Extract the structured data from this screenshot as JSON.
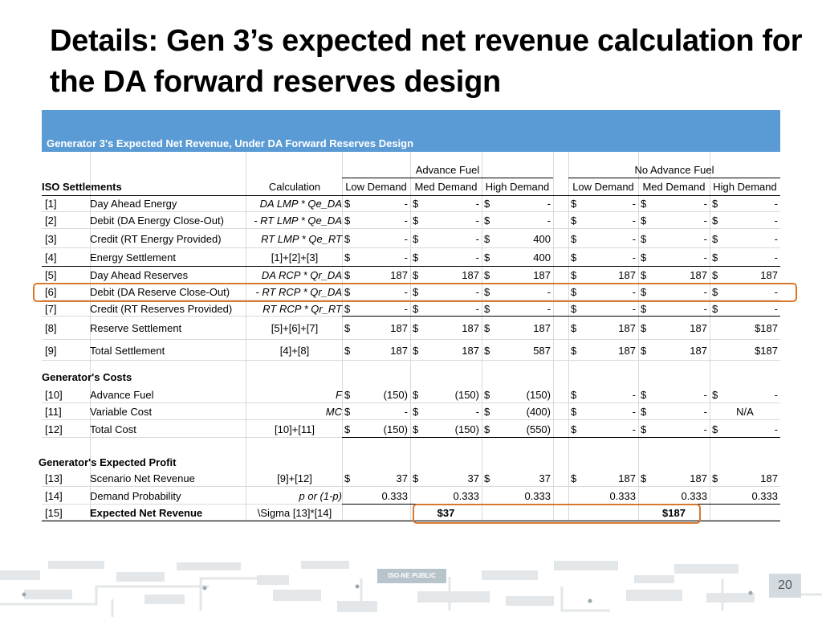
{
  "title": "Details: Gen 3’s expected net revenue calculation for the DA forward reserves design",
  "table_title": "Generator 3's Expected Net Revenue, Under DA Forward Reserves Design",
  "groups": {
    "advance": "Advance Fuel",
    "no_advance": "No Advance Fuel"
  },
  "columns": {
    "iso": "ISO Settlements",
    "calc": "Calculation",
    "low": "Low Demand",
    "med": "Med Demand",
    "high": "High Demand"
  },
  "sections": {
    "costs": "Generator's Costs",
    "profit": "Generator's Expected Profit"
  },
  "rows": [
    {
      "id": "[1]",
      "name": "Day Ahead Energy",
      "calc": "DA LMP * Qe_DA",
      "v": [
        [
          "$",
          "-"
        ],
        [
          "$",
          "-"
        ],
        [
          "$",
          "-"
        ],
        [
          "$",
          "-"
        ],
        [
          "$",
          "-"
        ],
        [
          "$",
          "-"
        ]
      ]
    },
    {
      "id": "[2]",
      "name": "Debit (DA Energy Close-Out)",
      "calc": "- RT LMP * Qe_DA",
      "v": [
        [
          "$",
          "-"
        ],
        [
          "$",
          "-"
        ],
        [
          "$",
          "-"
        ],
        [
          "$",
          "-"
        ],
        [
          "$",
          "-"
        ],
        [
          "$",
          "-"
        ]
      ]
    },
    {
      "id": "[3]",
      "name": "Credit (RT Energy Provided)",
      "calc": "RT LMP * Qe_RT",
      "v": [
        [
          "$",
          "-"
        ],
        [
          "$",
          "-"
        ],
        [
          "$",
          "400"
        ],
        [
          "$",
          "-"
        ],
        [
          "$",
          "-"
        ],
        [
          "$",
          "-"
        ]
      ]
    },
    {
      "id": "[4]",
      "name": "Energy Settlement",
      "calc": "[1]+[2]+[3]",
      "v": [
        [
          "$",
          "-"
        ],
        [
          "$",
          "-"
        ],
        [
          "$",
          "400"
        ],
        [
          "$",
          "-"
        ],
        [
          "$",
          "-"
        ],
        [
          "$",
          "-"
        ]
      ]
    },
    {
      "id": "[5]",
      "name": "Day Ahead Reserves",
      "calc": "DA RCP * Qr_DA",
      "v": [
        [
          "$",
          "187"
        ],
        [
          "$",
          "187"
        ],
        [
          "$",
          "187"
        ],
        [
          "$",
          "187"
        ],
        [
          "$",
          "187"
        ],
        [
          "$",
          "187"
        ]
      ]
    },
    {
      "id": "[6]",
      "name": "Debit (DA Reserve Close-Out)",
      "calc": "- RT RCP * Qr_DA",
      "v": [
        [
          "$",
          "-"
        ],
        [
          "$",
          "-"
        ],
        [
          "$",
          "-"
        ],
        [
          "$",
          "-"
        ],
        [
          "$",
          "-"
        ],
        [
          "$",
          "-"
        ]
      ]
    },
    {
      "id": "[7]",
      "name": "Credit (RT Reserves Provided)",
      "calc": "RT RCP * Qr_RT",
      "v": [
        [
          "$",
          "-"
        ],
        [
          "$",
          "-"
        ],
        [
          "$",
          "-"
        ],
        [
          "$",
          "-"
        ],
        [
          "$",
          "-"
        ],
        [
          "$",
          "-"
        ]
      ]
    },
    {
      "id": "[8]",
      "name": "Reserve Settlement",
      "calc": "[5]+[6]+[7]",
      "v": [
        [
          "$",
          "187"
        ],
        [
          "$",
          "187"
        ],
        [
          "$",
          "187"
        ],
        [
          "$",
          "187"
        ],
        [
          "$",
          "187"
        ],
        [
          "",
          "$187"
        ]
      ]
    },
    {
      "id": "[9]",
      "name": "Total Settlement",
      "calc": "[4]+[8]",
      "v": [
        [
          "$",
          "187"
        ],
        [
          "$",
          "187"
        ],
        [
          "$",
          "587"
        ],
        [
          "$",
          "187"
        ],
        [
          "$",
          "187"
        ],
        [
          "",
          "$187"
        ]
      ]
    },
    {
      "id": "[10]",
      "name": "Advance Fuel",
      "calc": "F",
      "v": [
        [
          "$",
          "(150)"
        ],
        [
          "$",
          "(150)"
        ],
        [
          "$",
          "(150)"
        ],
        [
          "$",
          "-"
        ],
        [
          "$",
          "-"
        ],
        [
          "$",
          "-"
        ]
      ]
    },
    {
      "id": "[11]",
      "name": "Variable Cost",
      "calc": "MC",
      "v": [
        [
          "$",
          "-"
        ],
        [
          "$",
          "-"
        ],
        [
          "$",
          "(400)"
        ],
        [
          "$",
          "-"
        ],
        [
          "$",
          "-"
        ],
        [
          "",
          "N/A"
        ]
      ]
    },
    {
      "id": "[12]",
      "name": "Total Cost",
      "calc": "[10]+[11]",
      "v": [
        [
          "$",
          "(150)"
        ],
        [
          "$",
          "(150)"
        ],
        [
          "$",
          "(550)"
        ],
        [
          "$",
          "-"
        ],
        [
          "$",
          "-"
        ],
        [
          "$",
          "-"
        ]
      ]
    },
    {
      "id": "[13]",
      "name": "Scenario Net Revenue",
      "calc": "[9]+[12]",
      "v": [
        [
          "$",
          "37"
        ],
        [
          "$",
          "37"
        ],
        [
          "$",
          "37"
        ],
        [
          "$",
          "187"
        ],
        [
          "$",
          "187"
        ],
        [
          "$",
          "187"
        ]
      ]
    },
    {
      "id": "[14]",
      "name": "Demand Probability",
      "calc": "p or (1-p)",
      "v": [
        [
          "",
          "0.333"
        ],
        [
          "",
          "0.333"
        ],
        [
          "",
          "0.333"
        ],
        [
          "",
          "0.333"
        ],
        [
          "",
          "0.333"
        ],
        [
          "",
          "0.333"
        ]
      ]
    },
    {
      "id": "[15]",
      "name": "Expected Net Revenue",
      "calc": "\\Sigma [13]*[14]",
      "v": [
        [
          "",
          ""
        ],
        [
          "",
          "$37"
        ],
        [
          "",
          ""
        ],
        [
          "",
          ""
        ],
        [
          "",
          "$187"
        ],
        [
          "",
          ""
        ]
      ]
    }
  ],
  "footer": {
    "tag": "ISO-NE PUBLIC",
    "page": "20"
  },
  "colors": {
    "header_blue": "#5b9bd5",
    "highlight_orange": "#d9782d"
  }
}
